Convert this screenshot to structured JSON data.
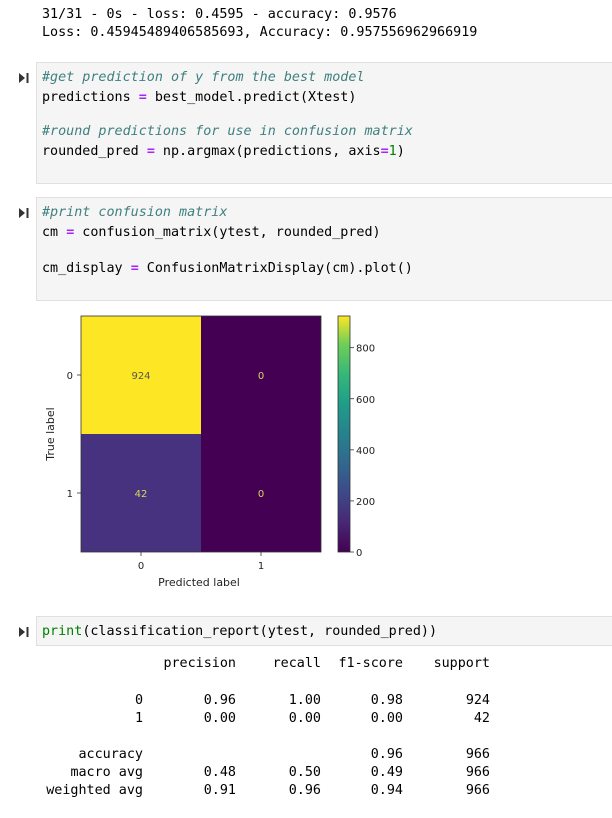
{
  "output_top": {
    "line1": "31/31 - 0s - loss: 0.4595 - accuracy: 0.9576",
    "line2": "Loss: 0.45945489406585693, Accuracy: 0.957556962966919"
  },
  "cell1": {
    "comment1": "#get prediction of y from the best model",
    "l2a": "predictions ",
    "l2op": "=",
    "l2b": " best_model.predict(Xtest)",
    "comment2": "#round predictions for use in confusion matrix",
    "l4a": "rounded_pred ",
    "l4op": "=",
    "l4b": " np.argmax(predictions, axis",
    "l4op2": "=",
    "l4num": "1",
    "l4c": ")"
  },
  "cell2": {
    "comment1": "#print confusion matrix",
    "l2a": "cm ",
    "l2op": "=",
    "l2b": " confusion_matrix(ytest, rounded_pred)",
    "l3a": "cm_display ",
    "l3op": "=",
    "l3b": " ConfusionMatrixDisplay(cm).plot()"
  },
  "chart_data": {
    "type": "heatmap",
    "rows": [
      "0",
      "1"
    ],
    "cols": [
      "0",
      "1"
    ],
    "values": [
      [
        924,
        0
      ],
      [
        42,
        0
      ]
    ],
    "value_labels": [
      [
        "924",
        "0"
      ],
      [
        "42",
        "0"
      ]
    ],
    "xlabel": "Predicted label",
    "ylabel": "True label",
    "colorbar_ticks": [
      "0",
      "200",
      "400",
      "600",
      "800"
    ],
    "colorbar_range": [
      0,
      924
    ],
    "colormap": "viridis",
    "colors": {
      "high": "#fde725",
      "low": "#440154",
      "mid_low": "#46327e"
    }
  },
  "cell3": {
    "print_kw": "print",
    "rest": "(classification_report(ytest, rounded_pred))"
  },
  "report": {
    "headers": [
      "precision",
      "recall",
      "f1-score",
      "support"
    ],
    "rows": [
      {
        "label": "0",
        "precision": "0.96",
        "recall": "1.00",
        "f1": "0.98",
        "support": "924"
      },
      {
        "label": "1",
        "precision": "0.00",
        "recall": "0.00",
        "f1": "0.00",
        "support": "42"
      },
      {
        "label": "accuracy",
        "precision": "",
        "recall": "",
        "f1": "0.96",
        "support": "966"
      },
      {
        "label": "macro avg",
        "precision": "0.48",
        "recall": "0.50",
        "f1": "0.49",
        "support": "966"
      },
      {
        "label": "weighted avg",
        "precision": "0.91",
        "recall": "0.96",
        "f1": "0.94",
        "support": "966"
      }
    ]
  }
}
